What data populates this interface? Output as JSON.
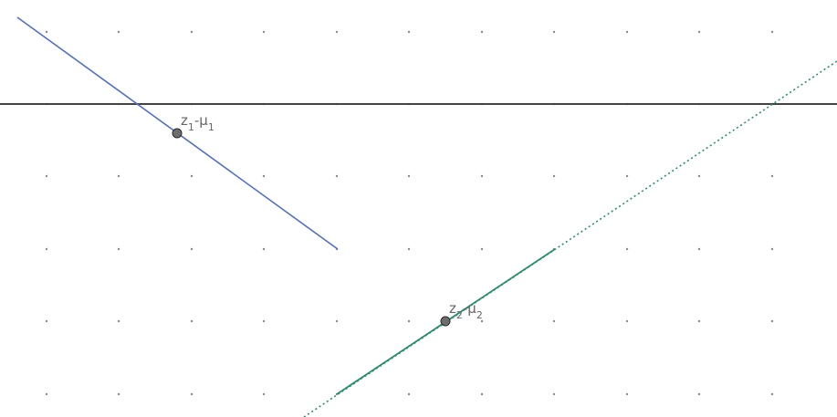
{
  "graph": {
    "colors": {
      "background": "#ffffff",
      "grid_dot": "#8a8a8a",
      "axis": "#444444",
      "line_1": "#5470b8",
      "line_2": "#2e8b6e",
      "point_fill": "#6e6e6e",
      "point_stroke": "#2a2a2a",
      "label": "#666666"
    },
    "points": [
      {
        "id": "p1",
        "label_main": "z",
        "label_sub1": "1",
        "label_mid": "-μ",
        "label_sub2": "1"
      },
      {
        "id": "p2",
        "label_main": "z",
        "label_sub1": "2",
        "label_mid": "-μ",
        "label_sub2": "2"
      }
    ]
  }
}
